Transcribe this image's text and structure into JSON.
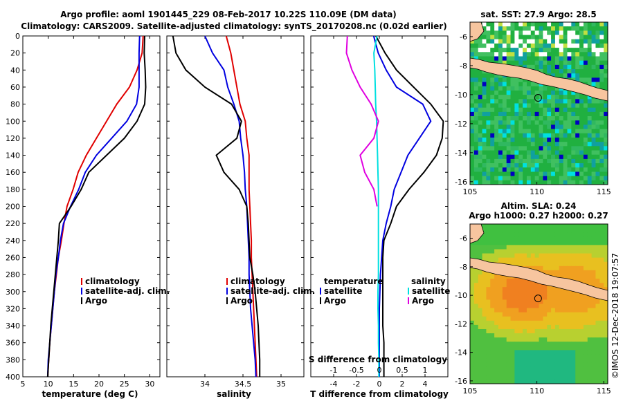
{
  "title": {
    "line1": "Argo profile: aoml 1901445_229 08-Feb-2017 10.22S 110.09E (DM data)",
    "line2": "Climatology: CARS2009. Satellite-adjusted climatology: synTS_20170208.nc (0.02d earlier)"
  },
  "colors": {
    "climatology": "#e00000",
    "satellite": "#0000e0",
    "argo": "#000000",
    "sat_s": "#00e0e0",
    "argo_s": "#e000e0"
  },
  "chart_data": [
    {
      "type": "line",
      "name": "temperature",
      "xlabel": "temperature (deg C)",
      "xlim": [
        5,
        32
      ],
      "ylim": [
        400,
        0
      ],
      "xticks": [
        5,
        10,
        15,
        20,
        25,
        30
      ],
      "yticks": [
        0,
        20,
        40,
        60,
        80,
        100,
        120,
        140,
        160,
        180,
        200,
        220,
        240,
        260,
        280,
        300,
        320,
        340,
        360,
        380,
        400
      ],
      "legend": [
        "climatology",
        "satellite-adj. clim.",
        "Argo"
      ],
      "series": [
        {
          "name": "climatology",
          "color": "#e00000",
          "points": [
            [
              28.7,
              0
            ],
            [
              28.5,
              20
            ],
            [
              27.5,
              40
            ],
            [
              26.0,
              60
            ],
            [
              23.5,
              80
            ],
            [
              21.5,
              100
            ],
            [
              19.5,
              120
            ],
            [
              17.5,
              140
            ],
            [
              15.9,
              160
            ],
            [
              14.9,
              180
            ],
            [
              13.7,
              200
            ],
            [
              13.1,
              220
            ],
            [
              12.6,
              240
            ],
            [
              12.0,
              260
            ],
            [
              11.6,
              280
            ],
            [
              11.2,
              300
            ],
            [
              10.9,
              320
            ],
            [
              10.6,
              340
            ],
            [
              10.3,
              360
            ],
            [
              10.1,
              380
            ],
            [
              9.9,
              400
            ]
          ]
        },
        {
          "name": "satellite-adj. clim.",
          "color": "#0000e0",
          "points": [
            [
              28.0,
              0
            ],
            [
              27.9,
              20
            ],
            [
              27.9,
              40
            ],
            [
              27.9,
              60
            ],
            [
              27.4,
              80
            ],
            [
              25.5,
              100
            ],
            [
              22.5,
              120
            ],
            [
              19.5,
              140
            ],
            [
              17.3,
              160
            ],
            [
              16.0,
              180
            ],
            [
              14.4,
              200
            ],
            [
              13.0,
              220
            ],
            [
              12.4,
              240
            ],
            [
              12.0,
              260
            ],
            [
              11.5,
              280
            ],
            [
              11.2,
              300
            ],
            [
              10.9,
              320
            ],
            [
              10.6,
              340
            ],
            [
              10.3,
              360
            ],
            [
              10.0,
              380
            ],
            [
              9.9,
              400
            ]
          ]
        },
        {
          "name": "Argo",
          "color": "#000000",
          "points": [
            [
              29.0,
              0
            ],
            [
              28.9,
              20
            ],
            [
              29.1,
              40
            ],
            [
              29.2,
              60
            ],
            [
              29.0,
              80
            ],
            [
              27.5,
              100
            ],
            [
              25.0,
              120
            ],
            [
              21.5,
              140
            ],
            [
              18.0,
              160
            ],
            [
              16.5,
              180
            ],
            [
              14.5,
              200
            ],
            [
              12.2,
              220
            ],
            [
              12.0,
              240
            ],
            [
              11.7,
              260
            ],
            [
              11.4,
              280
            ],
            [
              11.1,
              300
            ],
            [
              10.8,
              320
            ],
            [
              10.5,
              340
            ],
            [
              10.3,
              360
            ],
            [
              10.1,
              380
            ],
            [
              9.9,
              400
            ]
          ]
        }
      ]
    },
    {
      "type": "line",
      "name": "salinity",
      "xlabel": "salinity",
      "xlim": [
        33.5,
        35.3
      ],
      "ylim": [
        400,
        0
      ],
      "xticks": [
        34,
        34.5,
        35
      ],
      "xtick_labels": [
        "34",
        "34.5",
        "35"
      ],
      "legend": [
        "climatology",
        "satellite-adj. clim.",
        "Argo"
      ],
      "series": [
        {
          "name": "climatology",
          "color": "#e00000",
          "points": [
            [
              34.28,
              0
            ],
            [
              34.34,
              20
            ],
            [
              34.38,
              40
            ],
            [
              34.42,
              60
            ],
            [
              34.46,
              80
            ],
            [
              34.53,
              100
            ],
            [
              34.55,
              120
            ],
            [
              34.58,
              140
            ],
            [
              34.58,
              160
            ],
            [
              34.58,
              180
            ],
            [
              34.59,
              200
            ],
            [
              34.6,
              220
            ],
            [
              34.61,
              240
            ],
            [
              34.61,
              260
            ],
            [
              34.62,
              280
            ],
            [
              34.63,
              300
            ],
            [
              34.64,
              320
            ],
            [
              34.65,
              340
            ],
            [
              34.66,
              360
            ],
            [
              34.67,
              380
            ],
            [
              34.68,
              400
            ]
          ]
        },
        {
          "name": "satellite-adj. clim.",
          "color": "#0000e0",
          "points": [
            [
              34.0,
              0
            ],
            [
              34.1,
              20
            ],
            [
              34.25,
              40
            ],
            [
              34.3,
              60
            ],
            [
              34.38,
              80
            ],
            [
              34.45,
              100
            ],
            [
              34.47,
              120
            ],
            [
              34.5,
              140
            ],
            [
              34.52,
              160
            ],
            [
              34.53,
              180
            ],
            [
              34.55,
              200
            ],
            [
              34.56,
              220
            ],
            [
              34.57,
              240
            ],
            [
              34.58,
              260
            ],
            [
              34.58,
              280
            ],
            [
              34.59,
              300
            ],
            [
              34.6,
              320
            ],
            [
              34.62,
              340
            ],
            [
              34.64,
              360
            ],
            [
              34.66,
              380
            ],
            [
              34.67,
              400
            ]
          ]
        },
        {
          "name": "Argo",
          "color": "#000000",
          "points": [
            [
              33.58,
              0
            ],
            [
              33.62,
              20
            ],
            [
              33.75,
              40
            ],
            [
              34.0,
              60
            ],
            [
              34.35,
              80
            ],
            [
              34.48,
              100
            ],
            [
              34.42,
              120
            ],
            [
              34.15,
              140
            ],
            [
              34.25,
              160
            ],
            [
              34.45,
              180
            ],
            [
              34.55,
              200
            ],
            [
              34.57,
              220
            ],
            [
              34.58,
              240
            ],
            [
              34.59,
              260
            ],
            [
              34.63,
              280
            ],
            [
              34.66,
              300
            ],
            [
              34.68,
              320
            ],
            [
              34.7,
              340
            ],
            [
              34.71,
              360
            ],
            [
              34.72,
              380
            ],
            [
              34.72,
              400
            ]
          ]
        }
      ]
    },
    {
      "type": "line",
      "name": "difference",
      "xlabel": "T difference from climatology",
      "xlim": [
        -6,
        6
      ],
      "ylim": [
        400,
        0
      ],
      "xticks": [
        -4,
        -2,
        0,
        2,
        4
      ],
      "top_axis_label": "S difference from climatology",
      "top_ticks": [
        -1,
        -0.5,
        0,
        0.5,
        1
      ],
      "top_tick_labels": [
        "-1",
        "-0.5",
        "0",
        "0.5",
        "1"
      ],
      "legend_temperature_title": "temperature",
      "legend_temperature": [
        "satellite",
        "Argo"
      ],
      "legend_salinity_title": "salinity",
      "legend_salinity": [
        "satellite",
        "Argo"
      ],
      "series": [
        {
          "name": "T satellite",
          "color": "#0000e0",
          "points": [
            [
              -0.5,
              0
            ],
            [
              -0.1,
              20
            ],
            [
              0.6,
              40
            ],
            [
              1.5,
              60
            ],
            [
              3.8,
              80
            ],
            [
              4.5,
              100
            ],
            [
              3.5,
              120
            ],
            [
              2.5,
              140
            ],
            [
              1.9,
              160
            ],
            [
              1.3,
              180
            ],
            [
              1.0,
              200
            ],
            [
              0.6,
              220
            ],
            [
              0.3,
              240
            ],
            [
              0.2,
              260
            ],
            [
              0.1,
              280
            ],
            [
              0.05,
              300
            ],
            [
              0.0,
              320
            ],
            [
              0.0,
              340
            ],
            [
              0.0,
              360
            ],
            [
              0.0,
              380
            ],
            [
              0.0,
              400
            ]
          ]
        },
        {
          "name": "T Argo",
          "color": "#000000",
          "points": [
            [
              -0.3,
              0
            ],
            [
              0.5,
              20
            ],
            [
              1.5,
              40
            ],
            [
              3.0,
              60
            ],
            [
              4.5,
              80
            ],
            [
              5.6,
              100
            ],
            [
              5.5,
              120
            ],
            [
              5.0,
              140
            ],
            [
              3.9,
              160
            ],
            [
              2.6,
              180
            ],
            [
              1.5,
              200
            ],
            [
              1.0,
              220
            ],
            [
              0.4,
              240
            ],
            [
              0.3,
              260
            ],
            [
              0.3,
              280
            ],
            [
              0.3,
              300
            ],
            [
              0.3,
              320
            ],
            [
              0.3,
              340
            ],
            [
              0.4,
              360
            ],
            [
              0.4,
              380
            ],
            [
              0.4,
              400
            ]
          ]
        },
        {
          "name": "S satellite",
          "color": "#00e0e0",
          "points": [
            [
              -0.05,
              0
            ],
            [
              -0.12,
              20
            ],
            [
              -0.1,
              40
            ],
            [
              -0.09,
              60
            ],
            [
              -0.08,
              80
            ],
            [
              -0.06,
              100
            ],
            [
              -0.05,
              120
            ],
            [
              -0.04,
              140
            ],
            [
              -0.03,
              160
            ],
            [
              -0.02,
              180
            ],
            [
              -0.02,
              200
            ],
            [
              -0.02,
              220
            ],
            [
              -0.02,
              240
            ],
            [
              -0.02,
              260
            ],
            [
              -0.02,
              280
            ],
            [
              -0.03,
              300
            ],
            [
              -0.03,
              320
            ],
            [
              -0.02,
              340
            ],
            [
              -0.02,
              360
            ],
            [
              -0.01,
              380
            ],
            [
              -0.01,
              400
            ]
          ]
        },
        {
          "name": "S Argo",
          "color": "#e000e0",
          "points": [
            [
              -0.7,
              0
            ],
            [
              -0.72,
              20
            ],
            [
              -0.6,
              40
            ],
            [
              -0.42,
              60
            ],
            [
              -0.18,
              80
            ],
            [
              -0.02,
              100
            ],
            [
              -0.12,
              120
            ],
            [
              -0.42,
              140
            ],
            [
              -0.32,
              160
            ],
            [
              -0.12,
              180
            ],
            [
              -0.05,
              200
            ]
          ]
        }
      ]
    },
    {
      "type": "heatmap",
      "name": "sst_map",
      "title": "sat. SST: 27.9 Argo: 28.5",
      "xlim": [
        105,
        115.3
      ],
      "ylim": [
        -16.2,
        -5
      ],
      "xticks": [
        105,
        110,
        115
      ],
      "yticks": [
        -6,
        -8,
        -10,
        -12,
        -14,
        -16
      ],
      "marker": [
        110.09,
        -10.22
      ]
    },
    {
      "type": "heatmap",
      "name": "sla_map",
      "title_line1": "Altim. SLA: 0.24",
      "title_line2": "Argo h1000: 0.27 h2000: 0.27",
      "xlim": [
        105,
        115.3
      ],
      "ylim": [
        -16.2,
        -5
      ],
      "xticks": [
        105,
        110,
        115
      ],
      "yticks": [
        -6,
        -8,
        -10,
        -12,
        -14,
        -16
      ],
      "marker": [
        110.09,
        -10.22
      ]
    }
  ],
  "watermark": "©IMOS 12-Dec-2018 19:07:57"
}
